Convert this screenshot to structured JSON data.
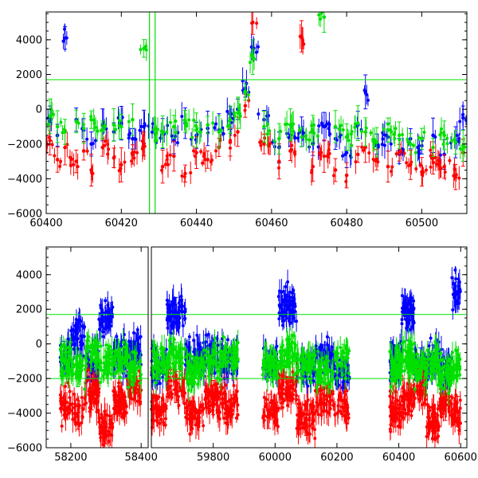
{
  "chart_data": [
    {
      "type": "scatter",
      "title": "",
      "xlabel": "",
      "ylabel": "",
      "xlim": [
        60400,
        60512
      ],
      "ylim": [
        -6000,
        5600
      ],
      "x_ticks": [
        60400,
        60420,
        60440,
        60460,
        60480,
        60500
      ],
      "y_ticks": [
        -6000,
        -4000,
        -2000,
        0,
        2000,
        4000
      ],
      "hlines": [
        1700
      ],
      "vlines": [
        60427.5,
        60429
      ],
      "grid": false,
      "series_colors": [
        "#0000ff",
        "#ff0000",
        "#00e000"
      ],
      "series": [
        {
          "color": "#0000ff",
          "x": [
            60401,
            60403,
            60405,
            60408,
            60410,
            60412,
            60415,
            60418,
            60420,
            60423,
            60426,
            60431,
            60434,
            60437,
            60440,
            60443,
            60446,
            60449,
            60451,
            60453,
            60455,
            60458,
            60462,
            60465,
            60468,
            60471,
            60474,
            60477,
            60480,
            60483,
            60485,
            60488,
            60491,
            60494,
            60497,
            60500,
            60503,
            60506,
            60509,
            60511
          ],
          "y": [
            -700,
            -1500,
            4100,
            -600,
            -1200,
            -2000,
            -900,
            -1300,
            -800,
            -1700,
            -1000,
            -1400,
            -1800,
            -800,
            -1500,
            -1100,
            -1200,
            -500,
            0,
            1200,
            3500,
            -600,
            -2200,
            -1500,
            -1300,
            -2000,
            -1000,
            -1700,
            -2500,
            -900,
            1000,
            -2000,
            -1600,
            -2400,
            -1700,
            -2100,
            -1500,
            -2600,
            -1900,
            -500
          ]
        },
        {
          "color": "#ff0000",
          "x": [
            60401,
            60403,
            60405,
            60408,
            60410,
            60412,
            60415,
            60418,
            60420,
            60423,
            60426,
            60431,
            60434,
            60437,
            60440,
            60443,
            60446,
            60449,
            60451,
            60453,
            60455,
            60458,
            60462,
            60465,
            60468,
            60471,
            60474,
            60477,
            60480,
            60483,
            60485,
            60488,
            60491,
            60494,
            60497,
            60500,
            60503,
            60506,
            60509,
            60511
          ],
          "y": [
            -1800,
            -2900,
            -2200,
            -3000,
            -2400,
            -3500,
            -2200,
            -2800,
            -3200,
            -2600,
            -2000,
            -3300,
            -2700,
            -3700,
            -2500,
            -2900,
            -2200,
            -1900,
            -1300,
            200,
            5000,
            -2000,
            -3000,
            -2400,
            4200,
            -3300,
            -2700,
            -3500,
            -3800,
            -2600,
            -2200,
            -2900,
            -3300,
            -2500,
            -3200,
            -3600,
            -2800,
            -3300,
            -3900,
            -2500
          ]
        },
        {
          "color": "#00e000",
          "x": [
            60401,
            60403,
            60405,
            60408,
            60410,
            60412,
            60415,
            60418,
            60420,
            60423,
            60426,
            60431,
            60434,
            60437,
            60440,
            60443,
            60446,
            60449,
            60451,
            60453,
            60455,
            60458,
            60462,
            60465,
            60468,
            60471,
            60474,
            60477,
            60480,
            60483,
            60485,
            60488,
            60491,
            60494,
            60497,
            60500,
            60503,
            60506,
            60509,
            60511
          ],
          "y": [
            -400,
            -1000,
            -1300,
            -700,
            -1100,
            -600,
            -1200,
            -900,
            -1000,
            -600,
            3500,
            -1300,
            -1000,
            -700,
            -1200,
            -900,
            -1300,
            -600,
            -200,
            1000,
            3000,
            -1000,
            -1700,
            -900,
            -1600,
            -1200,
            5300,
            -1000,
            -1600,
            -800,
            -1300,
            -1900,
            -1200,
            -1500,
            -2000,
            -1700,
            -2200,
            -1500,
            -1900,
            -2100
          ]
        }
      ]
    },
    {
      "type": "scatter",
      "title": "",
      "xlabel": "",
      "ylabel": "",
      "xlim": [
        58130,
        60620
      ],
      "x_axis_break": [
        58420,
        59600
      ],
      "ylim": [
        -6000,
        5600
      ],
      "x_ticks": [
        58200,
        58400,
        59800,
        60000,
        60200,
        60400,
        60600
      ],
      "y_ticks": [
        -6000,
        -4000,
        -2000,
        0,
        2000,
        4000
      ],
      "hlines": [
        1700,
        -2000
      ],
      "grid": false,
      "series_colors": [
        "#0000ff",
        "#ff0000",
        "#00e000"
      ],
      "season_ranges": [
        [
          58170,
          58400
        ],
        [
          59600,
          59880
        ],
        [
          59960,
          60240
        ],
        [
          60370,
          60600
        ]
      ],
      "series": [
        {
          "color": "#0000ff",
          "x": [
            58180,
            58220,
            58260,
            58300,
            58340,
            58380,
            59620,
            59680,
            59740,
            59800,
            59860,
            59980,
            60040,
            60100,
            60160,
            60220,
            60390,
            60430,
            60470,
            60510,
            60550,
            60590
          ],
          "y": [
            -800,
            300,
            -1200,
            1500,
            -600,
            -300,
            -1300,
            1800,
            -800,
            -600,
            -1000,
            -1100,
            2200,
            -1500,
            -600,
            -1800,
            -1000,
            1900,
            -1200,
            -900,
            -1500,
            3000
          ]
        },
        {
          "color": "#ff0000",
          "x": [
            58180,
            58220,
            58260,
            58300,
            58340,
            58380,
            59620,
            59680,
            59740,
            59800,
            59860,
            59980,
            60040,
            60100,
            60160,
            60220,
            60390,
            60430,
            60470,
            60510,
            60550,
            60590
          ],
          "y": [
            -3400,
            -4200,
            -2800,
            -4800,
            -3300,
            -2600,
            -3800,
            -2500,
            -4200,
            -3100,
            -3600,
            -3900,
            -2600,
            -4300,
            -3000,
            -3700,
            -3800,
            -3200,
            -2400,
            -4600,
            -3500,
            -3900
          ]
        },
        {
          "color": "#00e000",
          "x": [
            58180,
            58220,
            58260,
            58300,
            58340,
            58380,
            59620,
            59680,
            59740,
            59800,
            59860,
            59980,
            60040,
            60100,
            60160,
            60220,
            60390,
            60430,
            60470,
            60510,
            60550,
            60590
          ],
          "y": [
            -1000,
            -1600,
            -500,
            -1200,
            -900,
            -1400,
            -1100,
            -700,
            -1500,
            -1000,
            -800,
            -1300,
            -600,
            -1100,
            -1600,
            -900,
            -1200,
            -800,
            -1400,
            -1000,
            -1700,
            -1100
          ]
        }
      ]
    }
  ]
}
